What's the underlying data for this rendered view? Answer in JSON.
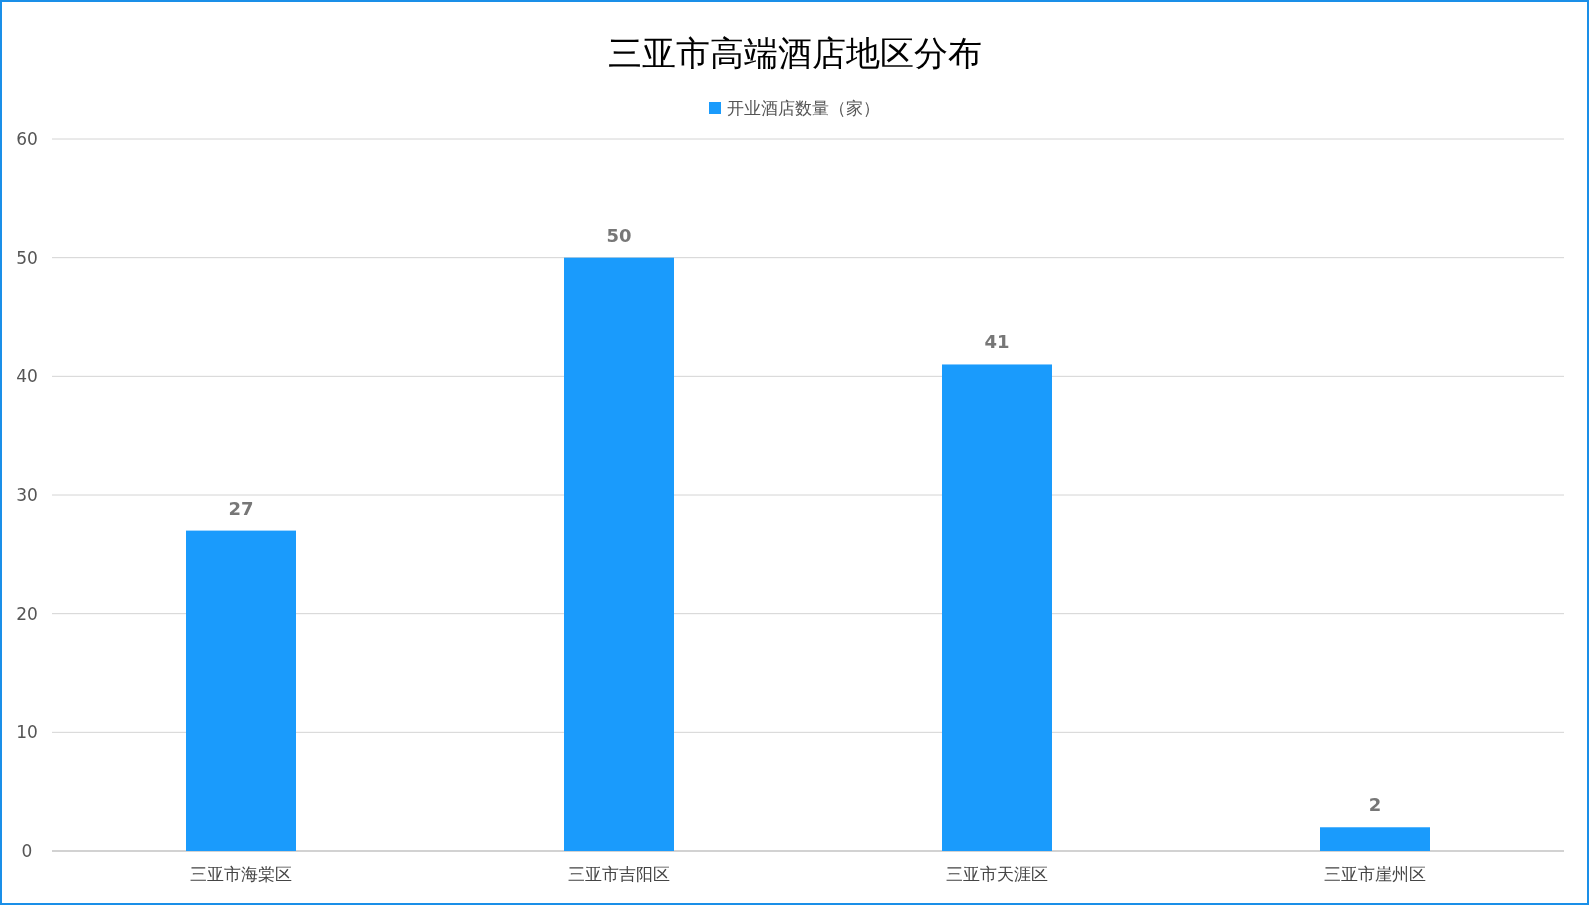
{
  "chart_data": {
    "type": "bar",
    "title": "三亚市高端酒店地区分布",
    "categories": [
      "三亚市海棠区",
      "三亚市吉阳区",
      "三亚市天涯区",
      "三亚市崖州区"
    ],
    "series": [
      {
        "name": "开业酒店数量（家）",
        "color": "#1a9bfc",
        "values": [
          27,
          50,
          41,
          2
        ]
      }
    ],
    "ylim": [
      0,
      60
    ],
    "yticks": [
      0,
      10,
      20,
      30,
      40,
      50,
      60
    ],
    "grid": "y",
    "legend": "top",
    "data_labels": true
  }
}
